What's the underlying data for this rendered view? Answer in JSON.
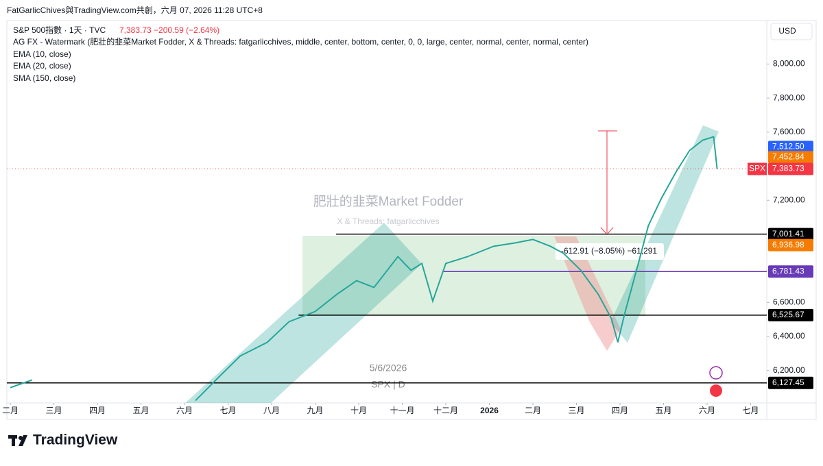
{
  "header": "FatGarlicChives與TradingView.com共創，六月 07, 2026 11:28 UTC+8",
  "legend": {
    "symbol": "S&P 500指數 · 1天 · TVC",
    "quote": "7,383.73  −200.59 (−2.64%)",
    "indicators": [
      "AG FX - Watermark (肥壯的韭菜Market Fodder, X & Threads: fatgarlicchives, middle, center, bottom, center, 0, 0, large, center, normal, center, normal, center)",
      "EMA (10, close)",
      "EMA (20, close)",
      "SMA (150, close)"
    ]
  },
  "currency": "USD",
  "watermark": {
    "title": "肥壯的韭菜Market Fodder",
    "subtitle": "X & Threads: fatgarlicchives"
  },
  "date_note": "5/6/2026",
  "symbol_note": "SPX | D",
  "annotation": "-612.91 (−8.05%) −61,291",
  "logo": "TradingView",
  "chart_data": {
    "type": "line",
    "x": [
      2.0,
      2.5,
      4.0,
      6.25,
      6.8,
      7.28,
      7.9,
      8.4,
      9.0,
      9.5,
      9.95,
      10.35,
      10.9,
      11.2,
      11.45,
      11.7,
      12.0,
      12.5,
      13.1,
      13.6,
      14.0,
      14.4,
      14.7,
      15.1,
      15.5,
      15.8,
      15.95,
      16.1,
      16.4,
      16.65,
      16.95,
      17.3,
      17.6,
      17.9,
      18.15,
      18.23
    ],
    "series": [
      {
        "name": "SPX",
        "color": "#26a69a",
        "values": [
          6100,
          6145,
          null,
          6024,
          6165,
          6286,
          6366,
          6487,
          6547,
          6648,
          6728,
          6688,
          6869,
          6789,
          6829,
          6608,
          6829,
          6869,
          6930,
          6950,
          6970,
          6930,
          6889,
          6789,
          6648,
          6507,
          6366,
          6527,
          6809,
          7050,
          7211,
          7372,
          7493,
          7553,
          7573,
          7383.73
        ]
      }
    ],
    "xlim": [
      1.92,
      19.37
    ],
    "xticks": [
      {
        "value": 2,
        "label": "二月"
      },
      {
        "value": 3,
        "label": "三月"
      },
      {
        "value": 4,
        "label": "四月"
      },
      {
        "value": 5,
        "label": "五月"
      },
      {
        "value": 6,
        "label": "六月"
      },
      {
        "value": 7,
        "label": "七月"
      },
      {
        "value": 8,
        "label": "八月"
      },
      {
        "value": 9,
        "label": "九月"
      },
      {
        "value": 10,
        "label": "十月"
      },
      {
        "value": 11,
        "label": "十一月"
      },
      {
        "value": 12,
        "label": "十二月"
      },
      {
        "value": 13,
        "label": "2026"
      },
      {
        "value": 14,
        "label": "二月"
      },
      {
        "value": 15,
        "label": "三月"
      },
      {
        "value": 16,
        "label": "四月"
      },
      {
        "value": 17,
        "label": "五月"
      },
      {
        "value": 18,
        "label": "六月"
      },
      {
        "value": 19,
        "label": "七月"
      }
    ],
    "ylim": [
      6010,
      8255
    ],
    "yticks": [
      {
        "value": 6200,
        "label": "6,200.00"
      },
      {
        "value": 6400,
        "label": "6,400.00"
      },
      {
        "value": 6600,
        "label": "6,600.00"
      },
      {
        "value": 7200,
        "label": "7,200.00"
      },
      {
        "value": 7600,
        "label": "7,600.00"
      },
      {
        "value": 7800,
        "label": "7,800.00"
      },
      {
        "value": 8000,
        "label": "8,000.00"
      }
    ],
    "levels": [
      {
        "value": 7001.41,
        "color": "#000000",
        "x_start": 9.48
      },
      {
        "value": 6781.43,
        "color": "#673ab7",
        "x_start": 11.95
      },
      {
        "value": 6525.67,
        "color": "#000000",
        "x_start": 8.62
      },
      {
        "value": 6127.45,
        "color": "#000000",
        "x_start": 1.92
      }
    ],
    "price_labels": [
      {
        "value": 7512.5,
        "label": "7,512.50",
        "color": "#2962ff"
      },
      {
        "value": 7452.84,
        "label": "7,452.84",
        "color": "#f57c00"
      },
      {
        "value": 7383.73,
        "label": "7,383.73",
        "color": "#f23645"
      },
      {
        "value": 7001.41,
        "label": "7,001.41",
        "color": "#000000"
      },
      {
        "value": 6936.98,
        "label": "6,936.98",
        "color": "#f57c00"
      },
      {
        "value": 6781.43,
        "label": "6,781.43",
        "color": "#673ab7"
      },
      {
        "value": 6525.67,
        "label": "6,525.67",
        "color": "#000000"
      },
      {
        "value": 6127.45,
        "label": "6,127.45",
        "color": "#000000"
      }
    ]
  }
}
